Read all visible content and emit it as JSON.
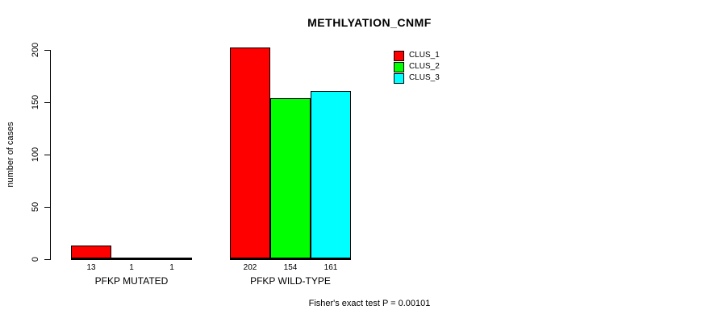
{
  "chart_data": {
    "type": "bar",
    "title": "METHLYATION_CNMF",
    "ylabel": "number of cases",
    "xlabel": "",
    "ylim": [
      0,
      200
    ],
    "yticks": [
      0,
      50,
      100,
      150,
      200
    ],
    "grid": false,
    "legend_position": "top-right",
    "categories": [
      "PFKP MUTATED",
      "PFKP WILD-TYPE"
    ],
    "series": [
      {
        "name": "CLUS_1",
        "color": "#ff0000",
        "values": [
          13,
          202
        ]
      },
      {
        "name": "CLUS_2",
        "color": "#00ff00",
        "values": [
          1,
          154
        ]
      },
      {
        "name": "CLUS_3",
        "color": "#00ffff",
        "values": [
          1,
          161
        ]
      }
    ],
    "annotation": "Fisher's exact test P = 0.00101"
  }
}
